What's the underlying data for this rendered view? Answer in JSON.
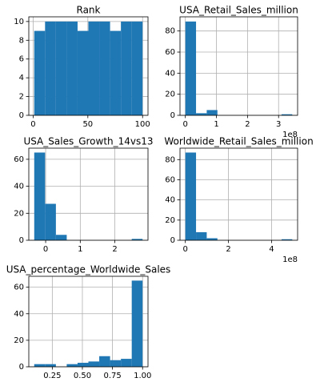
{
  "chart_data": [
    {
      "type": "histogram",
      "title": "Rank",
      "color": "#1f77b4",
      "grid": true,
      "bins": [
        1,
        10.9,
        20.8,
        30.7,
        40.6,
        50.5,
        60.4,
        70.3,
        80.2,
        90.1,
        100
      ],
      "values": [
        9,
        10,
        10,
        10,
        9,
        10,
        10,
        9,
        10,
        10
      ],
      "xlim": [
        -3.95,
        104.95
      ],
      "xticks": [
        0,
        50,
        100
      ],
      "ylim": [
        0,
        10.5
      ],
      "yticks": [
        0,
        2,
        4,
        6,
        8,
        10
      ]
    },
    {
      "type": "histogram",
      "title": "USA_Retail_Sales_million",
      "color": "#1f77b4",
      "grid": true,
      "bins": [
        0,
        34400000,
        68800000,
        103200000,
        137600000,
        172000000,
        206400000,
        240800000,
        275200000,
        309600000,
        344000000
      ],
      "values": [
        89,
        2,
        5,
        0,
        0,
        0,
        0,
        0,
        0,
        1
      ],
      "xlim": [
        -17200000,
        361200000
      ],
      "xticks": [
        0,
        {
          "value": 100000000,
          "label": "1"
        },
        {
          "value": 200000000,
          "label": "2"
        },
        {
          "value": 300000000,
          "label": "3"
        }
      ],
      "offset_label": "1e8",
      "ylim": [
        0,
        93.45
      ],
      "yticks": [
        0,
        20,
        40,
        60,
        80
      ]
    },
    {
      "type": "histogram",
      "title": "USA_Sales_Growth_14vs13",
      "color": "#1f77b4",
      "grid": true,
      "bins": [
        -0.33,
        -0.017,
        0.296,
        0.609,
        0.922,
        1.235,
        1.548,
        1.861,
        2.174,
        2.487,
        2.8
      ],
      "values": [
        65,
        27,
        4,
        0,
        0,
        0,
        0,
        0,
        0,
        1
      ],
      "xlim": [
        -0.487,
        2.957
      ],
      "xticks": [
        0,
        1,
        2
      ],
      "ylim": [
        0,
        68.25
      ],
      "yticks": [
        0,
        20,
        40,
        60
      ]
    },
    {
      "type": "histogram",
      "title": "Worldwide_Retail_Sales_million",
      "color": "#1f77b4",
      "grid": true,
      "bins": [
        0,
        49600000,
        99200000,
        148800000,
        198400000,
        248000000,
        297600000,
        347200000,
        396800000,
        446400000,
        496000000
      ],
      "values": [
        87,
        8,
        2,
        0,
        0,
        0,
        0,
        0,
        0,
        1
      ],
      "xlim": [
        -24800000,
        520800000
      ],
      "xticks": [
        0,
        {
          "value": 200000000,
          "label": "2"
        },
        {
          "value": 400000000,
          "label": "4"
        }
      ],
      "offset_label": "1e8",
      "ylim": [
        0,
        91.35
      ],
      "yticks": [
        0,
        20,
        40,
        60,
        80
      ]
    },
    {
      "type": "histogram",
      "title": "USA_percentage_Worldwide_Sales",
      "color": "#1f77b4",
      "grid": true,
      "bins": [
        0.1,
        0.19,
        0.28,
        0.37,
        0.46,
        0.55,
        0.64,
        0.73,
        0.82,
        0.91,
        1.0
      ],
      "values": [
        2,
        2,
        0,
        2,
        3,
        4,
        8,
        5,
        6,
        65
      ],
      "xlim": [
        0.055,
        1.045
      ],
      "xticks": [
        0.25,
        {
          "value": 0.5,
          "label": "0.50"
        },
        0.75,
        {
          "value": 1,
          "label": "1.00"
        }
      ],
      "ylim": [
        0,
        68.25
      ],
      "yticks": [
        0,
        20,
        40,
        60
      ]
    }
  ]
}
